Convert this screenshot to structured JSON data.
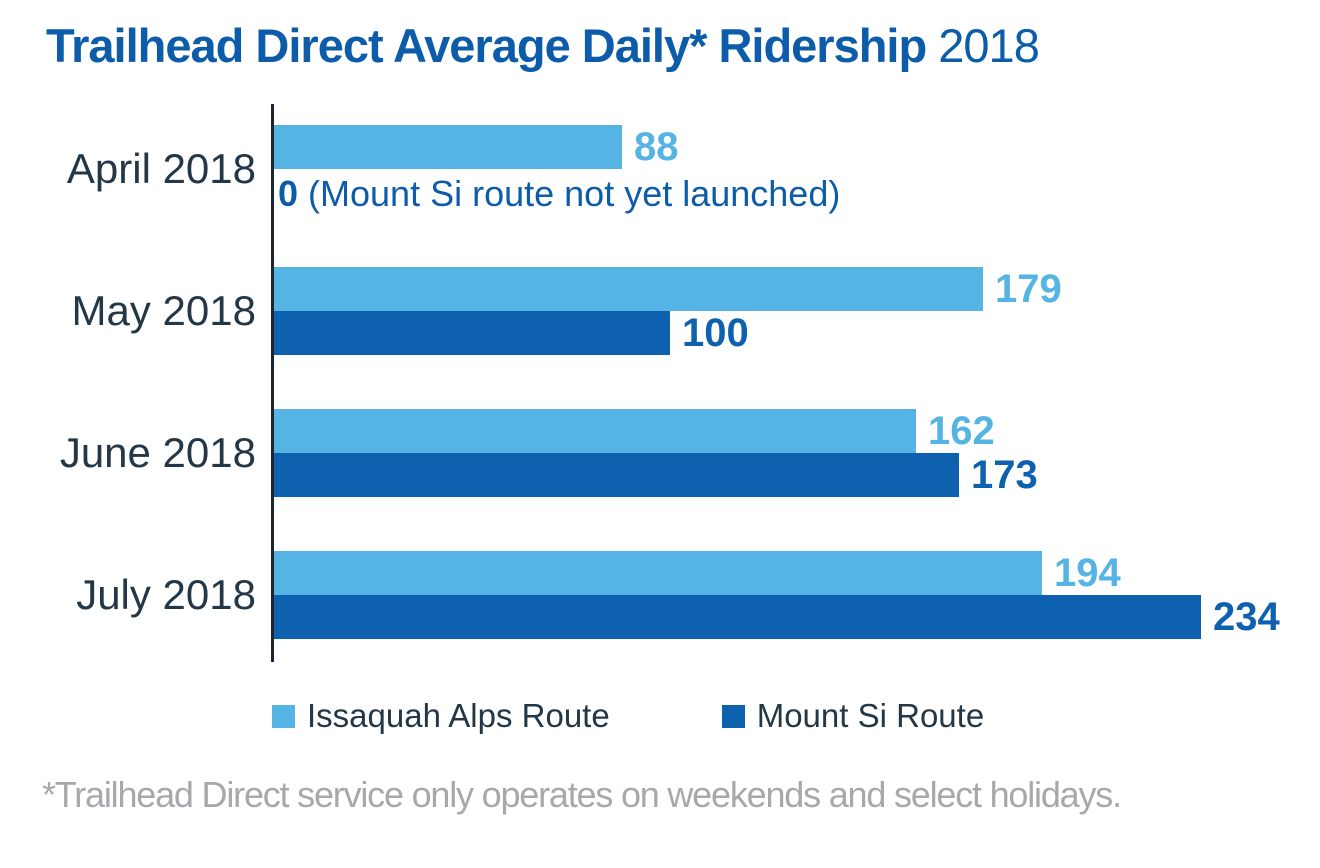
{
  "chart_data": {
    "type": "bar",
    "orientation": "horizontal",
    "title": "Trailhead Direct Average Daily* Ridership",
    "title_year": "2018",
    "categories": [
      "April 2018",
      "May 2018",
      "June 2018",
      "July 2018"
    ],
    "series": [
      {
        "name": "Issaquah Alps Route",
        "color": "#55B4E3",
        "values": [
          88,
          179,
          162,
          194
        ]
      },
      {
        "name": "Mount Si Route",
        "color": "#0E61AE",
        "values": [
          null,
          100,
          173,
          234
        ]
      }
    ],
    "annotation": {
      "category": "April 2018",
      "series": "Mount Si Route",
      "value_label": "0",
      "text": "(Mount Si route not yet launched)"
    },
    "value_labels_shown": true,
    "xlim": [
      0,
      240
    ],
    "legend_position": "bottom",
    "grid": false,
    "footnote": "*Trailhead Direct service only operates on weekends and select holidays.",
    "colors": {
      "title": "#0C5CAA",
      "annotation": "#0C5CAA",
      "category_label": "#233747",
      "legend_label": "#233747",
      "footnote": "#A6A8AB",
      "axis_line": "#1B2630"
    }
  }
}
